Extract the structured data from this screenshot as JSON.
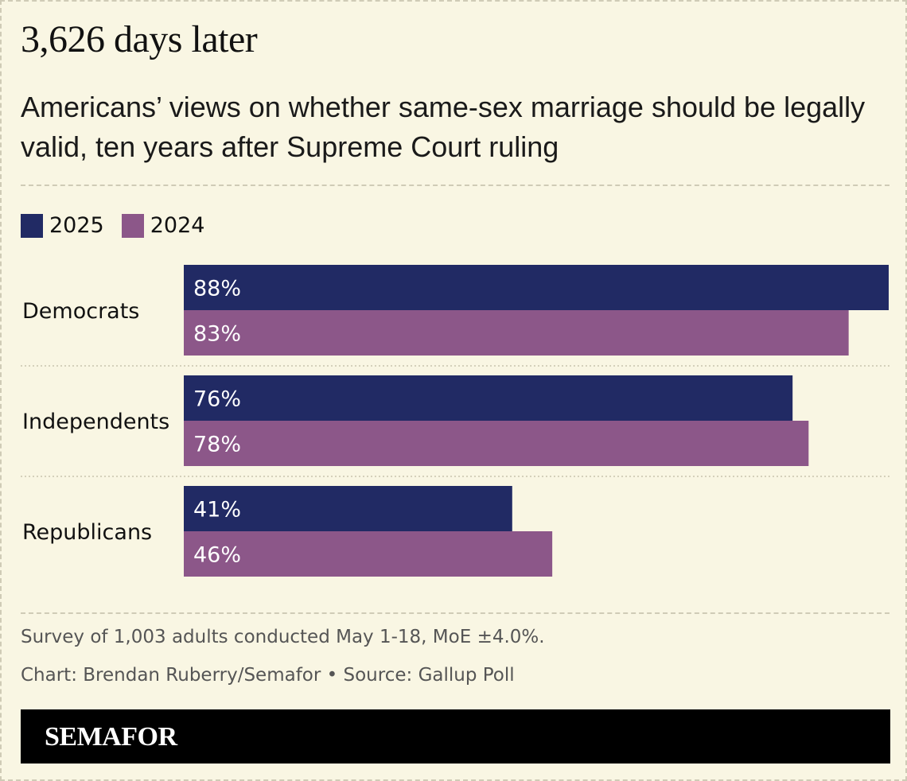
{
  "header": {
    "title": "3,626 days later",
    "subtitle": "Americans’ views on whether same-sex marriage should be legally valid, ten years after Supreme Court ruling"
  },
  "legend": [
    {
      "label": "2025",
      "color": "#212a64"
    },
    {
      "label": "2024",
      "color": "#8c5789"
    }
  ],
  "chart_data": {
    "type": "bar",
    "orientation": "horizontal",
    "title": "3,626 days later",
    "subtitle": "Americans’ views on whether same-sex marriage should be legally valid, ten years after Supreme Court ruling",
    "categories": [
      "Democrats",
      "Independents",
      "Republicans"
    ],
    "series": [
      {
        "name": "2025",
        "color": "#212a64",
        "values": [
          88,
          76,
          41
        ],
        "labels": [
          "88%",
          "76%",
          "41%"
        ]
      },
      {
        "name": "2024",
        "color": "#8c5789",
        "values": [
          83,
          78,
          46
        ],
        "labels": [
          "83%",
          "78%",
          "46%"
        ]
      }
    ],
    "xlim": [
      0,
      88
    ],
    "unit": "%",
    "legend_position": "top-left",
    "grid": false
  },
  "footer": {
    "note": "Survey of 1,003 adults conducted May 1-18, MoE ±4.0%.",
    "credit": "Chart: Brendan Ruberry/Semafor • Source: Gallup Poll",
    "brand": "SEMAFOR"
  }
}
